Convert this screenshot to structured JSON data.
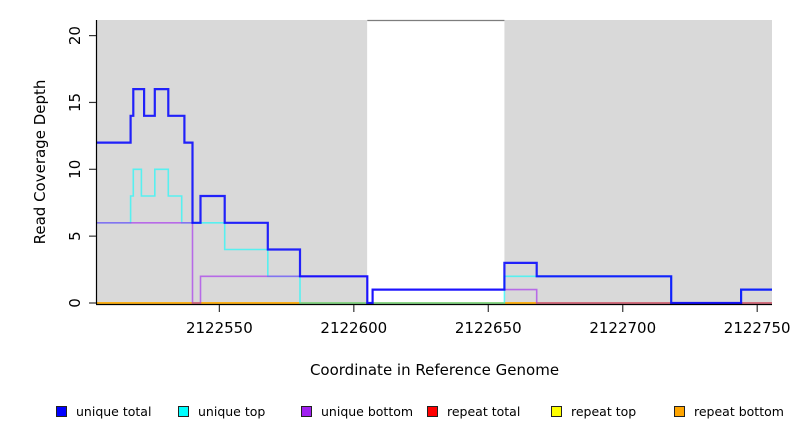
{
  "chart_data": {
    "type": "line",
    "subtype": "step-coverage",
    "title": "",
    "xlabel": "Coordinate in Reference Genome",
    "ylabel": "Read Coverage Depth",
    "xlim": [
      2122504.5,
      2122755.5
    ],
    "ylim": [
      0,
      21.2
    ],
    "x_ticks": [
      2122550,
      2122600,
      2122650,
      2122700,
      2122750
    ],
    "y_ticks": [
      0,
      5,
      10,
      15,
      20
    ],
    "grid": "off",
    "legend_position": "bottom",
    "plot_background": "#FFFFFF",
    "repeat_region_color": "#D9D9D9",
    "background_regions": [
      {
        "name": "repeat-region-left",
        "x1": 2122504.5,
        "x2": 2122605,
        "color": "#D9D9D9"
      },
      {
        "name": "unique-region-gap",
        "x1": 2122605,
        "x2": 2122656,
        "color": "#FFFFFF"
      },
      {
        "name": "repeat-region-right",
        "x1": 2122656,
        "x2": 2122755.5,
        "color": "#D9D9D9"
      }
    ],
    "series": [
      {
        "name": "repeat-total",
        "label": "repeat total",
        "color": "#FF0000",
        "width": 1.4,
        "opacity": 0.8,
        "segments": [
          [
            2122504.5,
            2122755.5,
            0
          ]
        ]
      },
      {
        "name": "repeat-top",
        "label": "repeat top",
        "color": "#FFFF00",
        "width": 1.4,
        "opacity": 0.8,
        "segments": [
          [
            2122504.5,
            2122755.5,
            0
          ]
        ]
      },
      {
        "name": "repeat-bottom",
        "label": "repeat bottom",
        "color": "#FFA500",
        "width": 1.4,
        "opacity": 0.8,
        "segments": [
          [
            2122504.5,
            2122755.5,
            0
          ]
        ]
      },
      {
        "name": "unique-top",
        "label": "unique top",
        "color": "#00FFFF",
        "width": 1.6,
        "opacity": 0.6,
        "segments": [
          [
            2122504.5,
            2122517,
            6
          ],
          [
            2122517,
            2122518,
            8
          ],
          [
            2122518,
            2122521,
            10
          ],
          [
            2122521,
            2122526,
            8
          ],
          [
            2122526,
            2122531,
            10
          ],
          [
            2122531,
            2122536,
            8
          ],
          [
            2122536,
            2122552,
            6
          ],
          [
            2122552,
            2122568,
            4
          ],
          [
            2122568,
            2122580,
            2
          ],
          [
            2122580,
            2122656,
            0
          ],
          [
            2122656,
            2122718,
            2
          ],
          [
            2122718,
            2122744,
            0
          ],
          [
            2122744,
            2122755.5,
            1
          ]
        ]
      },
      {
        "name": "unique-bottom",
        "label": "unique bottom",
        "color": "#A020F0",
        "width": 1.6,
        "opacity": 0.6,
        "segments": [
          [
            2122504.5,
            2122540,
            6
          ],
          [
            2122540,
            2122543,
            0
          ],
          [
            2122543,
            2122605,
            2
          ],
          [
            2122605,
            2122607,
            0
          ],
          [
            2122607,
            2122668,
            1
          ],
          [
            2122668,
            2122755.5,
            0
          ]
        ]
      },
      {
        "name": "unique-total",
        "label": "unique total",
        "color": "#0000FF",
        "width": 2.2,
        "opacity": 0.85,
        "segments": [
          [
            2122504.5,
            2122517,
            12
          ],
          [
            2122517,
            2122518,
            14
          ],
          [
            2122518,
            2122522,
            16
          ],
          [
            2122522,
            2122526,
            14
          ],
          [
            2122526,
            2122531,
            16
          ],
          [
            2122531,
            2122537,
            14
          ],
          [
            2122537,
            2122540,
            12
          ],
          [
            2122540,
            2122543,
            6
          ],
          [
            2122543,
            2122552,
            8
          ],
          [
            2122552,
            2122568,
            6
          ],
          [
            2122568,
            2122580,
            4
          ],
          [
            2122580,
            2122605,
            2
          ],
          [
            2122605,
            2122607,
            0
          ],
          [
            2122607,
            2122656,
            1
          ],
          [
            2122656,
            2122668,
            3
          ],
          [
            2122668,
            2122718,
            2
          ],
          [
            2122718,
            2122744,
            0
          ],
          [
            2122744,
            2122755.5,
            1
          ]
        ]
      }
    ]
  },
  "legend": {
    "items": [
      {
        "name": "unique-total",
        "label": "unique total",
        "color": "#0000FF"
      },
      {
        "name": "unique-top",
        "label": "unique top",
        "color": "#00FFFF"
      },
      {
        "name": "unique-bottom",
        "label": "unique bottom",
        "color": "#A020F0"
      },
      {
        "name": "repeat-total",
        "label": "repeat total",
        "color": "#FF0000"
      },
      {
        "name": "repeat-top",
        "label": "repeat top",
        "color": "#FFFF00"
      },
      {
        "name": "repeat-bottom",
        "label": "repeat bottom",
        "color": "#FFA500"
      }
    ]
  },
  "labels": {
    "xlabel": "Coordinate in Reference Genome",
    "ylabel": "Read Coverage Depth"
  }
}
